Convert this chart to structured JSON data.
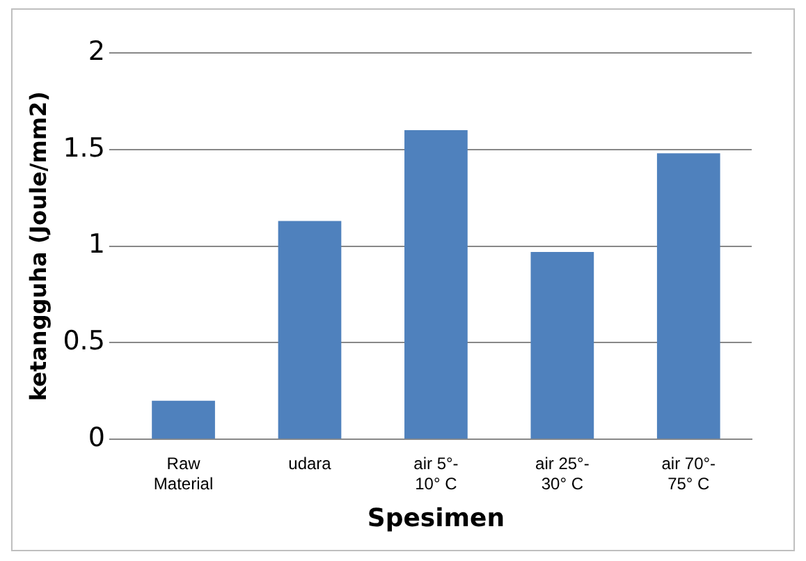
{
  "chart_data": {
    "type": "bar",
    "xlabel": "Spesimen",
    "ylabel": "ketangguha (Joule/mm2)",
    "categories": [
      "Raw Material",
      "udara",
      "air 5°-10° C",
      "air 25°-30° C",
      "air 70°-75° C"
    ],
    "values": [
      0.2,
      1.13,
      1.6,
      0.97,
      1.48
    ],
    "color": "#4f81bd",
    "ylim": [
      0,
      2
    ],
    "yticks": [
      0,
      0.5,
      1,
      1.5,
      2
    ],
    "grid": "y",
    "legend": false
  }
}
